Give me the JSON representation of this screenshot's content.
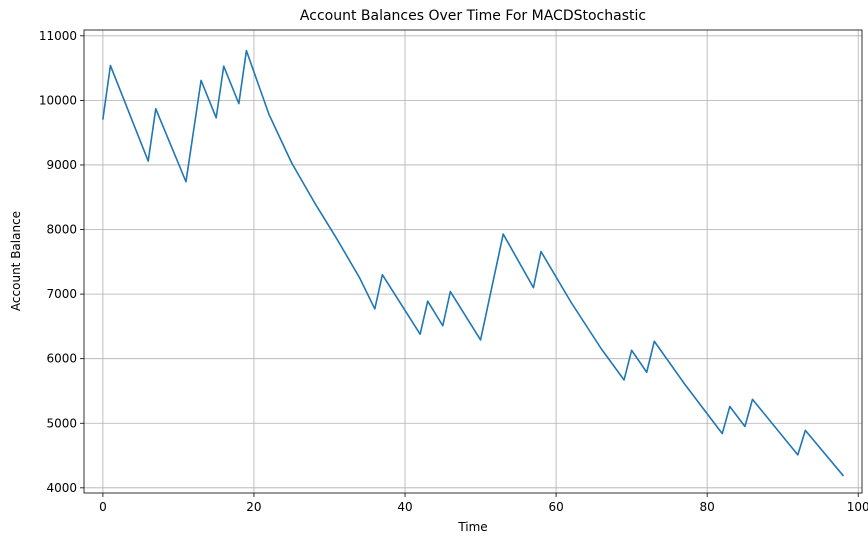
{
  "chart_data": {
    "type": "line",
    "title": "Account Balances Over Time For MACDStochastic",
    "xlabel": "Time",
    "ylabel": "Account Balance",
    "xlim": [
      -2.5,
      100.5
    ],
    "ylim": [
      3920,
      11090
    ],
    "xticks": [
      0,
      20,
      40,
      60,
      80,
      100
    ],
    "yticks": [
      4000,
      5000,
      6000,
      7000,
      8000,
      9000,
      10000,
      11000
    ],
    "grid": true,
    "line_color": "#1f77b4",
    "series": [
      {
        "points": [
          [
            0,
            9710
          ],
          [
            1,
            10540
          ],
          [
            6,
            9060
          ],
          [
            7,
            9870
          ],
          [
            11,
            8740
          ],
          [
            13,
            10310
          ],
          [
            15,
            9730
          ],
          [
            16,
            10530
          ],
          [
            18,
            9950
          ],
          [
            19,
            10770
          ],
          [
            22,
            9780
          ],
          [
            25,
            9030
          ],
          [
            28,
            8420
          ],
          [
            31,
            7850
          ],
          [
            34,
            7250
          ],
          [
            36,
            6770
          ],
          [
            37,
            7300
          ],
          [
            42,
            6380
          ],
          [
            43,
            6890
          ],
          [
            45,
            6510
          ],
          [
            46,
            7040
          ],
          [
            50,
            6290
          ],
          [
            53,
            7930
          ],
          [
            57,
            7100
          ],
          [
            58,
            7660
          ],
          [
            62,
            6870
          ],
          [
            66,
            6150
          ],
          [
            69,
            5670
          ],
          [
            70,
            6130
          ],
          [
            72,
            5790
          ],
          [
            73,
            6270
          ],
          [
            77,
            5610
          ],
          [
            82,
            4840
          ],
          [
            83,
            5260
          ],
          [
            85,
            4950
          ],
          [
            86,
            5370
          ],
          [
            92,
            4510
          ],
          [
            93,
            4890
          ],
          [
            98,
            4190
          ]
        ]
      }
    ]
  }
}
